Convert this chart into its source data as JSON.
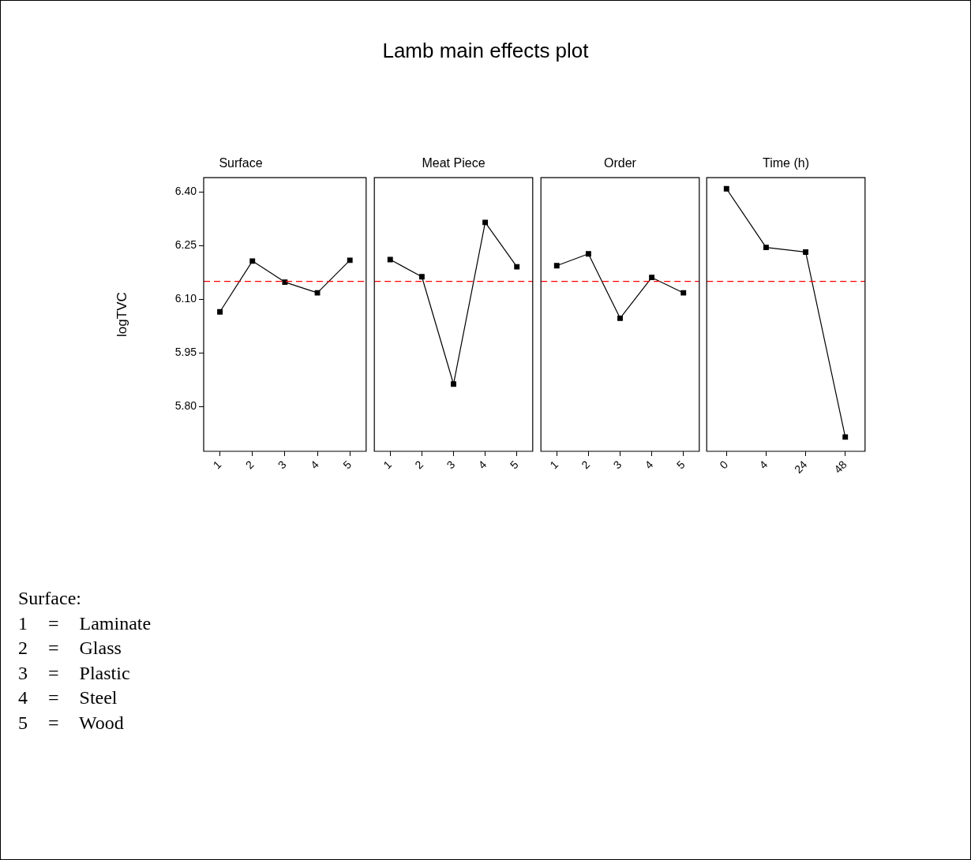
{
  "chart_data": [
    {
      "type": "other",
      "title": "Lamb main effects plot"
    },
    {
      "type": "line",
      "title": "Surface",
      "ylabel": "logTVC",
      "categories": [
        "1",
        "2",
        "3",
        "4",
        "5"
      ],
      "values": [
        6.065,
        6.207,
        6.148,
        6.118,
        6.209
      ],
      "color": "#000000",
      "marker": "square",
      "line_style": "solid",
      "ylim": [
        5.675,
        6.44
      ],
      "yticks": [
        {
          "value": 5.8,
          "label": "5.80"
        },
        {
          "value": 5.95,
          "label": "5.95"
        },
        {
          "value": 6.1,
          "label": "6.10"
        },
        {
          "value": 6.25,
          "label": "6.25"
        },
        {
          "value": 6.4,
          "label": "6.40"
        }
      ],
      "grid": false,
      "ref_lines": [
        {
          "axis": "y",
          "value": 6.15,
          "color": "#ff0000",
          "line_style": "dashed"
        }
      ]
    },
    {
      "type": "line",
      "title": "Meat Piece",
      "categories": [
        "1",
        "2",
        "3",
        "4",
        "5"
      ],
      "values": [
        6.211,
        6.163,
        5.863,
        6.315,
        6.191
      ],
      "color": "#000000",
      "marker": "square",
      "line_style": "solid",
      "ylim": [
        5.675,
        6.44
      ],
      "tick_labels": "x",
      "grid": false,
      "ref_lines": [
        {
          "axis": "y",
          "value": 6.15,
          "color": "#ff0000",
          "line_style": "dashed"
        }
      ]
    },
    {
      "type": "line",
      "title": "Order",
      "categories": [
        "1",
        "2",
        "3",
        "4",
        "5"
      ],
      "values": [
        6.194,
        6.227,
        6.047,
        6.161,
        6.118
      ],
      "color": "#000000",
      "marker": "square",
      "line_style": "solid",
      "ylim": [
        5.675,
        6.44
      ],
      "tick_labels": "x",
      "grid": false,
      "ref_lines": [
        {
          "axis": "y",
          "value": 6.15,
          "color": "#ff0000",
          "line_style": "dashed"
        }
      ]
    },
    {
      "type": "line",
      "title": "Time (h)",
      "categories": [
        "0",
        "4",
        "24",
        "48"
      ],
      "values": [
        6.409,
        6.245,
        6.232,
        5.715
      ],
      "color": "#000000",
      "marker": "square",
      "line_style": "solid",
      "ylim": [
        5.675,
        6.44
      ],
      "tick_labels": "x",
      "grid": false,
      "ref_lines": [
        {
          "axis": "y",
          "value": 6.15,
          "color": "#ff0000",
          "line_style": "dashed"
        }
      ]
    },
    {
      "type": "other",
      "annotations": [
        "Surface:",
        "1 = Laminate",
        "2 = Glass",
        "3 = Plastic",
        "4 = Steel",
        "5 = Wood"
      ]
    }
  ]
}
